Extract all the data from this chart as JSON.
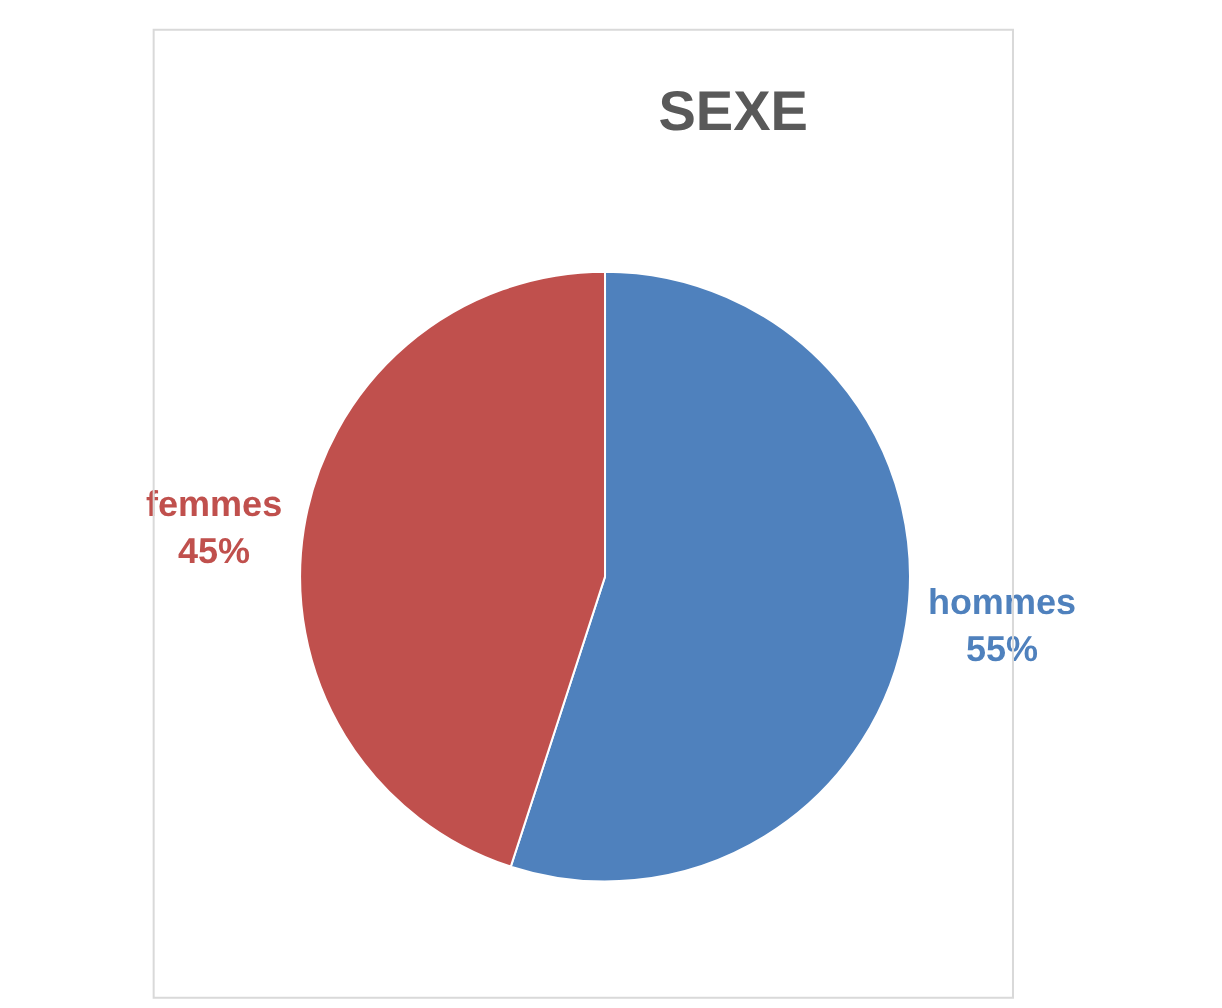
{
  "chart_data": {
    "type": "pie",
    "title": "SEXE",
    "categories": [
      "hommes",
      "femmes"
    ],
    "values": [
      55,
      45
    ],
    "value_labels": [
      "55%",
      "45%"
    ],
    "colors": [
      "#4f81bd",
      "#c0504d"
    ],
    "legend": false
  }
}
